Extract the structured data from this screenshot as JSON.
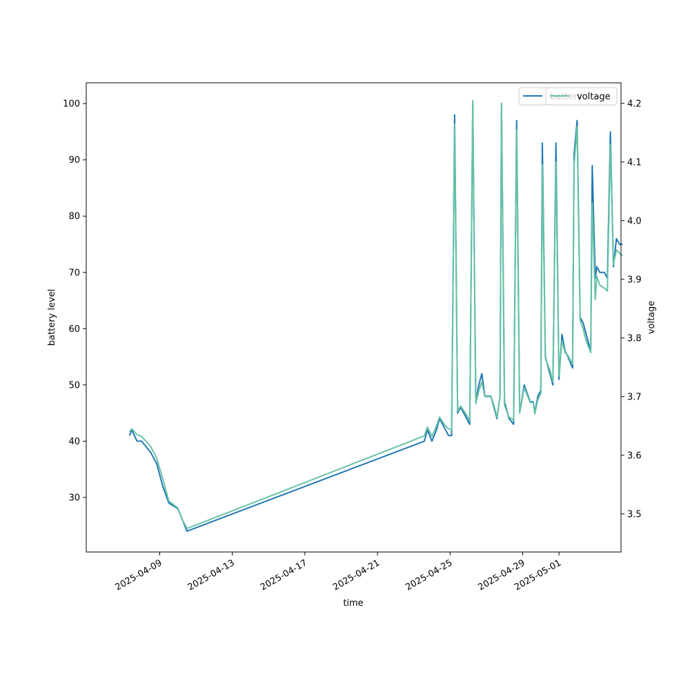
{
  "chart_data": {
    "type": "line",
    "xlabel": "time",
    "ylabel_left": "battery level",
    "ylabel_right": "voltage",
    "x_ticks": [
      "2025-04-09",
      "2025-04-13",
      "2025-04-17",
      "2025-04-21",
      "2025-04-25",
      "2025-04-29",
      "2025-05-01"
    ],
    "x_range": [
      "2025-04-05",
      "2025-05-04"
    ],
    "ylim_left": [
      20.3,
      103.7
    ],
    "yticks_left": [
      30,
      40,
      50,
      60,
      70,
      80,
      90,
      100
    ],
    "ylim_right": [
      3.435,
      4.235
    ],
    "yticks_right": [
      3.5,
      3.6,
      3.7,
      3.8,
      3.9,
      4.0,
      4.1,
      4.2
    ],
    "grid": false,
    "legend_left_axis": {
      "position": "top-right",
      "entries": [
        "battery"
      ]
    },
    "legend_right_axis": {
      "position": "top-right",
      "entries": [
        "voltage"
      ]
    },
    "colors": {
      "battery": "#1f77b4",
      "voltage": "#66c2a5"
    },
    "series": [
      {
        "name": "battery",
        "axis": "left",
        "points": [
          [
            "2025-04-07T08:00",
            41
          ],
          [
            "2025-04-07T11:00",
            42
          ],
          [
            "2025-04-07T18:00",
            40
          ],
          [
            "2025-04-08T00:00",
            40
          ],
          [
            "2025-04-08T12:00",
            38
          ],
          [
            "2025-04-08T20:00",
            36
          ],
          [
            "2025-04-09T04:00",
            32
          ],
          [
            "2025-04-09T12:00",
            29
          ],
          [
            "2025-04-09T18:00",
            28.5
          ],
          [
            "2025-04-10T00:00",
            28
          ],
          [
            "2025-04-10T06:00",
            26
          ],
          [
            "2025-04-10T12:00",
            24
          ],
          [
            "2025-04-23T14:00",
            40
          ],
          [
            "2025-04-23T18:00",
            42
          ],
          [
            "2025-04-24T00:00",
            40
          ],
          [
            "2025-04-24T06:00",
            42
          ],
          [
            "2025-04-24T10:00",
            44
          ],
          [
            "2025-04-24T18:00",
            42
          ],
          [
            "2025-04-24T22:00",
            41
          ],
          [
            "2025-04-25T02:00",
            41
          ],
          [
            "2025-04-25T06:00",
            98
          ],
          [
            "2025-04-25T10:00",
            45
          ],
          [
            "2025-04-25T14:00",
            46
          ],
          [
            "2025-04-25T22:00",
            44
          ],
          [
            "2025-04-26T02:00",
            43
          ],
          [
            "2025-04-26T06:00",
            100
          ],
          [
            "2025-04-26T10:00",
            47
          ],
          [
            "2025-04-26T14:00",
            50
          ],
          [
            "2025-04-26T18:00",
            52
          ],
          [
            "2025-04-26T22:00",
            48
          ],
          [
            "2025-04-27T06:00",
            48
          ],
          [
            "2025-04-27T10:00",
            46
          ],
          [
            "2025-04-27T14:00",
            44
          ],
          [
            "2025-04-27T18:00",
            48
          ],
          [
            "2025-04-27T20:00",
            100
          ],
          [
            "2025-04-28T00:00",
            47
          ],
          [
            "2025-04-28T06:00",
            44
          ],
          [
            "2025-04-28T12:00",
            43
          ],
          [
            "2025-04-28T16:00",
            97
          ],
          [
            "2025-04-28T20:00",
            45
          ],
          [
            "2025-04-29T02:00",
            50
          ],
          [
            "2025-04-29T10:00",
            47
          ],
          [
            "2025-04-29T14:00",
            47
          ],
          [
            "2025-04-29T16:00",
            45
          ],
          [
            "2025-04-29T20:00",
            48
          ],
          [
            "2025-04-30T00:00",
            49
          ],
          [
            "2025-04-30T02:00",
            93
          ],
          [
            "2025-04-30T06:00",
            55
          ],
          [
            "2025-04-30T12:00",
            52
          ],
          [
            "2025-04-30T16:00",
            50
          ],
          [
            "2025-04-30T20:00",
            93
          ],
          [
            "2025-05-01T00:00",
            51
          ],
          [
            "2025-05-01T04:00",
            59
          ],
          [
            "2025-05-01T08:00",
            56
          ],
          [
            "2025-05-01T12:00",
            55
          ],
          [
            "2025-05-01T18:00",
            53
          ],
          [
            "2025-05-01T20:00",
            91
          ],
          [
            "2025-05-02T00:00",
            97
          ],
          [
            "2025-05-02T04:00",
            62
          ],
          [
            "2025-05-02T08:00",
            61
          ],
          [
            "2025-05-02T12:00",
            59
          ],
          [
            "2025-05-02T18:00",
            56
          ],
          [
            "2025-05-02T20:00",
            89
          ],
          [
            "2025-05-03T00:00",
            69
          ],
          [
            "2025-05-03T02:00",
            71
          ],
          [
            "2025-05-03T06:00",
            70
          ],
          [
            "2025-05-03T12:00",
            70
          ],
          [
            "2025-05-03T16:00",
            69
          ],
          [
            "2025-05-03T20:00",
            95
          ],
          [
            "2025-05-04T00:00",
            71
          ],
          [
            "2025-05-04T04:00",
            76
          ],
          [
            "2025-05-04T08:00",
            75
          ],
          [
            "2025-05-04T12:00",
            75
          ]
        ]
      },
      {
        "name": "voltage",
        "axis": "right",
        "points": [
          [
            "2025-04-07T08:00",
            3.64
          ],
          [
            "2025-04-07T11:00",
            3.645
          ],
          [
            "2025-04-07T18:00",
            3.635
          ],
          [
            "2025-04-08T00:00",
            3.632
          ],
          [
            "2025-04-08T12:00",
            3.615
          ],
          [
            "2025-04-08T20:00",
            3.595
          ],
          [
            "2025-04-09T04:00",
            3.56
          ],
          [
            "2025-04-09T12:00",
            3.522
          ],
          [
            "2025-04-09T18:00",
            3.516
          ],
          [
            "2025-04-10T00:00",
            3.51
          ],
          [
            "2025-04-10T06:00",
            3.49
          ],
          [
            "2025-04-10T12:00",
            3.475
          ],
          [
            "2025-04-23T14:00",
            3.633
          ],
          [
            "2025-04-23T18:00",
            3.648
          ],
          [
            "2025-04-24T00:00",
            3.632
          ],
          [
            "2025-04-24T06:00",
            3.65
          ],
          [
            "2025-04-24T10:00",
            3.665
          ],
          [
            "2025-04-24T18:00",
            3.65
          ],
          [
            "2025-04-24T22:00",
            3.645
          ],
          [
            "2025-04-25T02:00",
            3.643
          ],
          [
            "2025-04-25T06:00",
            4.165
          ],
          [
            "2025-04-25T10:00",
            3.675
          ],
          [
            "2025-04-25T14:00",
            3.684
          ],
          [
            "2025-04-25T22:00",
            3.668
          ],
          [
            "2025-04-26T02:00",
            3.658
          ],
          [
            "2025-04-26T06:00",
            4.205
          ],
          [
            "2025-04-26T10:00",
            3.688
          ],
          [
            "2025-04-26T14:00",
            3.71
          ],
          [
            "2025-04-26T18:00",
            3.725
          ],
          [
            "2025-04-26T22:00",
            3.7
          ],
          [
            "2025-04-27T06:00",
            3.7
          ],
          [
            "2025-04-27T10:00",
            3.685
          ],
          [
            "2025-04-27T14:00",
            3.665
          ],
          [
            "2025-04-27T18:00",
            3.7
          ],
          [
            "2025-04-27T20:00",
            4.2
          ],
          [
            "2025-04-28T00:00",
            3.685
          ],
          [
            "2025-04-28T06:00",
            3.665
          ],
          [
            "2025-04-28T12:00",
            3.66
          ],
          [
            "2025-04-28T16:00",
            4.155
          ],
          [
            "2025-04-28T20:00",
            3.672
          ],
          [
            "2025-04-29T02:00",
            3.715
          ],
          [
            "2025-04-29T10:00",
            3.69
          ],
          [
            "2025-04-29T14:00",
            3.69
          ],
          [
            "2025-04-29T16:00",
            3.67
          ],
          [
            "2025-04-29T20:00",
            3.695
          ],
          [
            "2025-04-30T00:00",
            3.705
          ],
          [
            "2025-04-30T02:00",
            4.095
          ],
          [
            "2025-04-30T06:00",
            3.765
          ],
          [
            "2025-04-30T12:00",
            3.745
          ],
          [
            "2025-04-30T16:00",
            3.725
          ],
          [
            "2025-04-30T20:00",
            4.1
          ],
          [
            "2025-05-01T00:00",
            3.735
          ],
          [
            "2025-05-01T04:00",
            3.795
          ],
          [
            "2025-05-01T08:00",
            3.775
          ],
          [
            "2025-05-01T12:00",
            3.77
          ],
          [
            "2025-05-01T18:00",
            3.755
          ],
          [
            "2025-05-01T20:00",
            4.095
          ],
          [
            "2025-05-02T00:00",
            4.16
          ],
          [
            "2025-05-02T04:00",
            3.83
          ],
          [
            "2025-05-02T08:00",
            3.815
          ],
          [
            "2025-05-02T12:00",
            3.795
          ],
          [
            "2025-05-02T18:00",
            3.775
          ],
          [
            "2025-05-02T20:00",
            4.03
          ],
          [
            "2025-05-03T00:00",
            3.865
          ],
          [
            "2025-05-03T02:00",
            3.905
          ],
          [
            "2025-05-03T06:00",
            3.89
          ],
          [
            "2025-05-03T12:00",
            3.885
          ],
          [
            "2025-05-03T16:00",
            3.88
          ],
          [
            "2025-05-03T20:00",
            4.13
          ],
          [
            "2025-05-04T00:00",
            3.925
          ],
          [
            "2025-05-04T04:00",
            3.95
          ],
          [
            "2025-05-04T08:00",
            3.945
          ],
          [
            "2025-05-04T12:00",
            3.94
          ]
        ]
      }
    ]
  }
}
